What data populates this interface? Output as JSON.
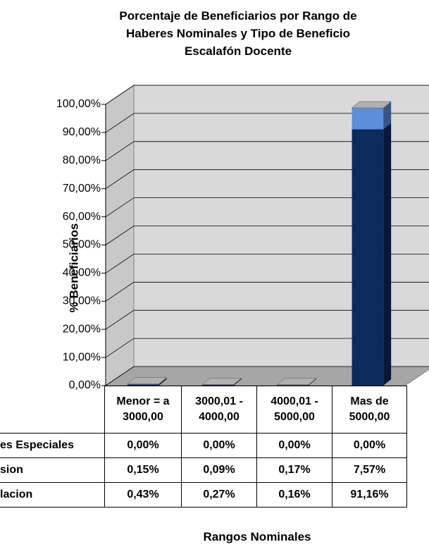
{
  "chart_data": {
    "type": "bar3d_stacked",
    "title": "Porcentaje de Beneficiarios por Rango de Haberes Nominales y Tipo de Beneficio Escalafón Docente",
    "y_label": "% Beneficiarios",
    "x_label": "Rangos Nominales",
    "categories": [
      "Menor = a 3000,00",
      "3000,01 - 4000,00",
      "4000,01 - 5000,00",
      "Mas de 5000,00"
    ],
    "series": [
      {
        "name": "es Especiales",
        "color": "#b8c4d8",
        "values": [
          0,
          0,
          0,
          0
        ],
        "value_labels": [
          "0,00%",
          "0,00%",
          "0,00%",
          "0,00%"
        ]
      },
      {
        "name": "sion",
        "color": "#5b8fdc",
        "values": [
          0.15,
          0.09,
          0.17,
          7.57
        ],
        "value_labels": [
          "0,15%",
          "0,09%",
          "0,17%",
          "7,57%"
        ]
      },
      {
        "name": "lacion",
        "color": "#0b2a5e",
        "values": [
          0.43,
          0.27,
          0.16,
          91.16
        ],
        "value_labels": [
          "0,43%",
          "0,27%",
          "0,16%",
          "91,16%"
        ]
      }
    ],
    "ylim": [
      0,
      100
    ],
    "yticks": [
      {
        "value": 0,
        "label": "0,00%"
      },
      {
        "value": 10,
        "label": "10,00%"
      },
      {
        "value": 20,
        "label": "20,00%"
      },
      {
        "value": 30,
        "label": "30,00%"
      },
      {
        "value": 40,
        "label": "40,00%"
      },
      {
        "value": 50,
        "label": "50,00%"
      },
      {
        "value": 60,
        "label": "60,00%"
      },
      {
        "value": 70,
        "label": "70,00%"
      },
      {
        "value": 80,
        "label": "80,00%"
      },
      {
        "value": 90,
        "label": "90,00%"
      },
      {
        "value": 100,
        "label": "100,00%"
      }
    ],
    "grid": true
  }
}
